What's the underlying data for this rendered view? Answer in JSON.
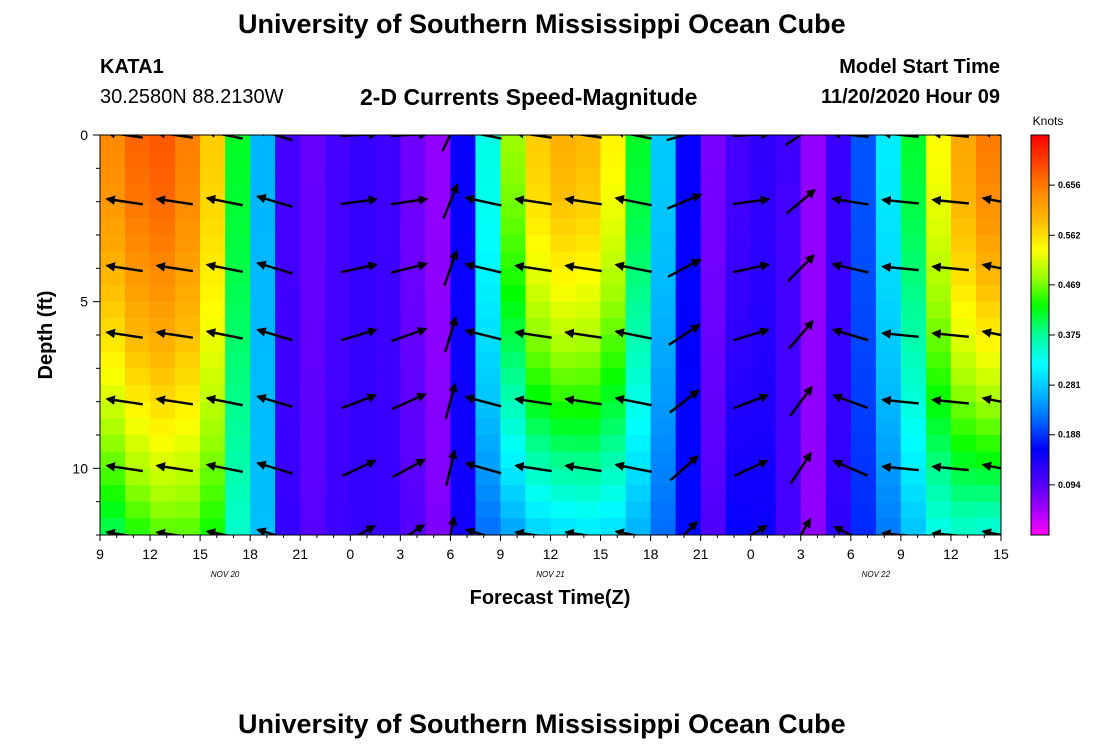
{
  "header": {
    "title": "University of Southern Mississippi Ocean Cube",
    "station": "KATA1",
    "coords": "30.2580N 88.2130W",
    "plot_title": "2-D Currents Speed-Magnitude",
    "model_label": "Model Start Time",
    "model_time": "11/20/2020 Hour 09"
  },
  "footer": {
    "title": "University of Southern Mississippi Ocean Cube"
  },
  "colors": {
    "scale": [
      "#ff00ff",
      "#9900ff",
      "#4400ff",
      "#0000ff",
      "#0066ff",
      "#00bbff",
      "#00ffff",
      "#00ff99",
      "#00ff00",
      "#99ff00",
      "#ffff00",
      "#ffbb00",
      "#ff8800",
      "#ff4400",
      "#ff0000"
    ],
    "arrow": "#000000"
  },
  "chart_data": {
    "type": "heatmap",
    "title": "2-D Currents Speed-Magnitude",
    "xlabel": "Forecast Time(Z)",
    "ylabel": "Depth (ft)",
    "x_tick_labels": [
      "9",
      "12",
      "15",
      "18",
      "21",
      "0",
      "3",
      "6",
      "9",
      "12",
      "15",
      "18",
      "21",
      "0",
      "3",
      "6",
      "9",
      "12",
      "15"
    ],
    "x_tick_hours": [
      0,
      3,
      6,
      9,
      12,
      15,
      18,
      21,
      24,
      27,
      30,
      33,
      36,
      39,
      42,
      45,
      48,
      51,
      54
    ],
    "day_labels": [
      {
        "text": "NOV 20",
        "hour": 7.5
      },
      {
        "text": "NOV 21",
        "hour": 27
      },
      {
        "text": "NOV 22",
        "hour": 46.5
      }
    ],
    "xlim": [
      0,
      54
    ],
    "y_ticks": [
      0,
      5,
      10
    ],
    "ylim": [
      0,
      12
    ],
    "y_inverted": true,
    "colorbar": {
      "label": "Knots",
      "range": [
        0,
        0.75
      ],
      "tick_values": [
        0.094,
        0.188,
        0.281,
        0.375,
        0.469,
        0.562,
        0.656
      ],
      "tick_labels": [
        "0.094",
        "0.188",
        "0.281",
        "0.375",
        "0.469",
        "0.562",
        "0.656"
      ]
    },
    "time_profile": {
      "hours": [
        0,
        1.5,
        3,
        4.5,
        6,
        7,
        8,
        9,
        10,
        11,
        12,
        13,
        14.5,
        15.5,
        16.5,
        17.5,
        18.5,
        19.5,
        20.5,
        21.5,
        22.5,
        23.5,
        24.5,
        25.5,
        27,
        28.5,
        30,
        31,
        32,
        33,
        34,
        35,
        36,
        37,
        38,
        39,
        40,
        41,
        42,
        43,
        44,
        45,
        46,
        47,
        48,
        49,
        50,
        51,
        52,
        53,
        54
      ],
      "surface": [
        0.62,
        0.66,
        0.68,
        0.68,
        0.62,
        0.56,
        0.44,
        0.34,
        0.24,
        0.12,
        0.07,
        0.09,
        0.11,
        0.12,
        0.12,
        0.11,
        0.09,
        0.05,
        0.06,
        0.12,
        0.26,
        0.36,
        0.46,
        0.55,
        0.6,
        0.6,
        0.58,
        0.53,
        0.44,
        0.34,
        0.26,
        0.18,
        0.09,
        0.07,
        0.1,
        0.13,
        0.12,
        0.12,
        0.08,
        0.05,
        0.1,
        0.16,
        0.22,
        0.29,
        0.36,
        0.43,
        0.52,
        0.58,
        0.62,
        0.65,
        0.66
      ],
      "bottom_factor": [
        0.6,
        0.64,
        0.66,
        0.68,
        0.72,
        0.76,
        0.8,
        0.95,
        1.05,
        1.1,
        1.15,
        1.1,
        1.05,
        1.0,
        1.0,
        1.05,
        1.2,
        1.3,
        1.2,
        1.0,
        0.75,
        0.62,
        0.52,
        0.5,
        0.48,
        0.5,
        0.52,
        0.55,
        0.6,
        0.7,
        0.8,
        1.0,
        1.2,
        1.4,
        1.5,
        1.4,
        1.2,
        1.0,
        0.9,
        1.1,
        1.1,
        1.0,
        0.85,
        0.75,
        0.7,
        0.65,
        0.62,
        0.6,
        0.55,
        0.52,
        0.5
      ]
    },
    "vectors": {
      "hours": [
        1.5,
        4.5,
        7.5,
        10.5,
        15.5,
        18.5,
        21,
        23,
        26,
        29,
        32,
        35,
        39,
        42,
        45,
        48,
        51,
        54
      ],
      "depths": [
        0,
        2,
        4,
        6,
        8,
        10,
        12
      ],
      "u_sign": [
        -1,
        -1,
        -1,
        -1,
        1,
        1,
        0.3,
        -1,
        -1,
        -1,
        -1,
        1,
        1,
        0.6,
        -1,
        -1,
        -1,
        -1
      ],
      "v_tilt": [
        0.15,
        0.15,
        0.2,
        0.3,
        0.05,
        0.05,
        0.6,
        0.2,
        0.15,
        0.15,
        0.2,
        0.3,
        0.05,
        0.4,
        0.1,
        0.1,
        0.1,
        0.2
      ],
      "bottom_veer": [
        0,
        0,
        0,
        0,
        0.5,
        0.6,
        0.8,
        0.1,
        0,
        0,
        0,
        0.7,
        0.5,
        0.6,
        0.4,
        0,
        0,
        0
      ]
    }
  }
}
